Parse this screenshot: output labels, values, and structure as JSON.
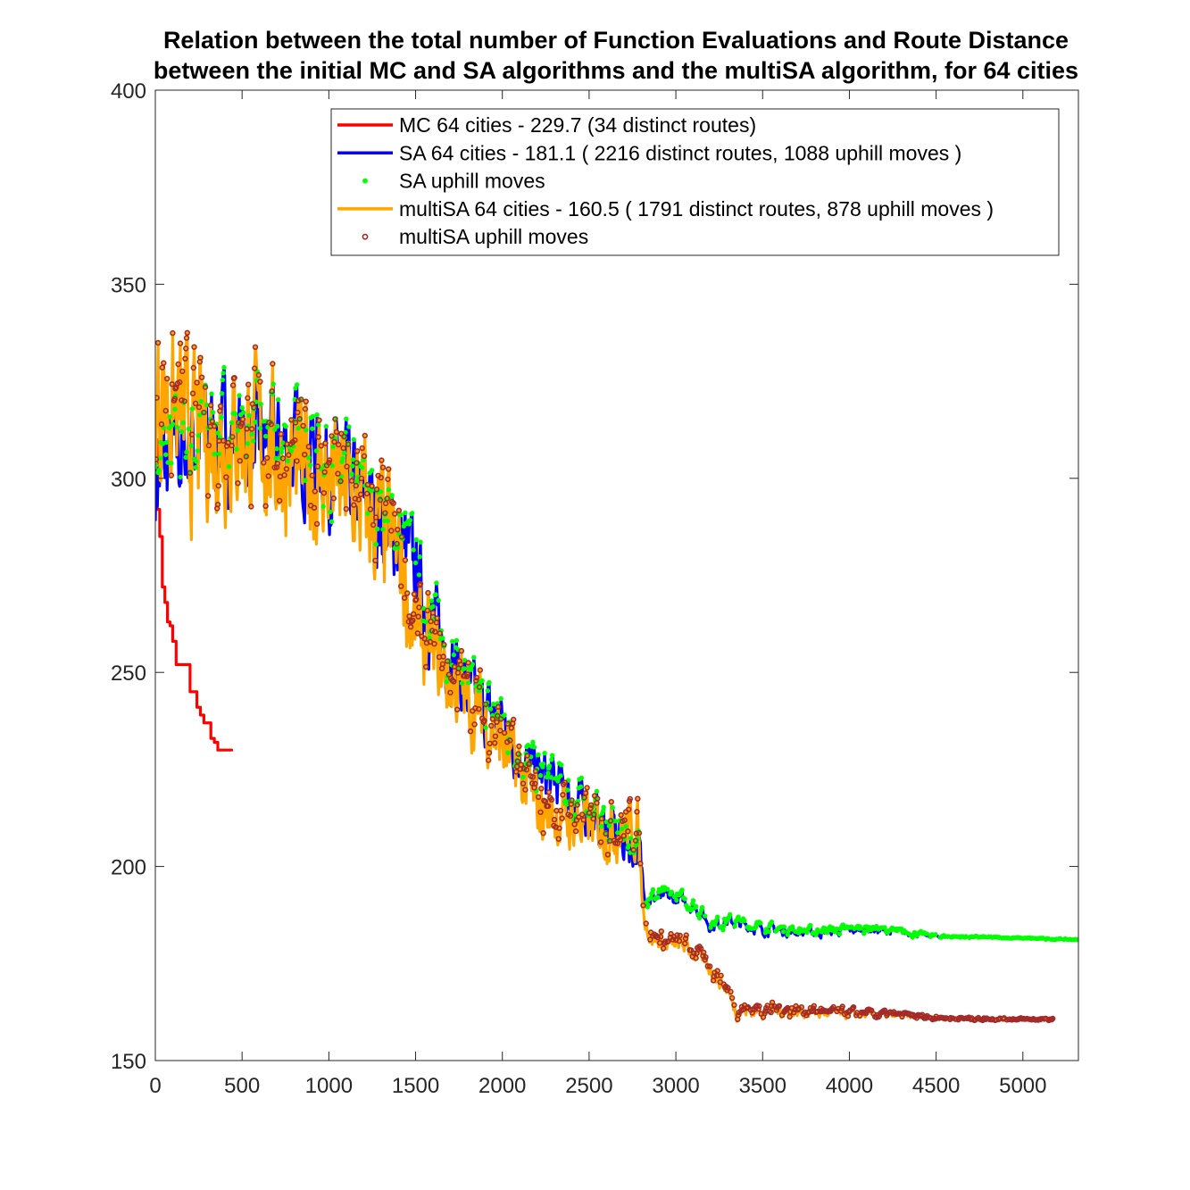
{
  "chart_data": {
    "type": "line",
    "title": [
      "Relation between the total number of Function Evaluations and Route Distance",
      "between the initial MC and SA algorithms and the multiSA algorithm, for 64 cities"
    ],
    "xlabel": "",
    "ylabel": "",
    "xlim": [
      0,
      5320
    ],
    "ylim": [
      150,
      400
    ],
    "xticks": [
      0,
      500,
      1000,
      1500,
      2000,
      2500,
      3000,
      3500,
      4000,
      4500,
      5000
    ],
    "yticks": [
      150,
      200,
      250,
      300,
      350,
      400
    ],
    "grid": false,
    "legend_position": "top-right",
    "colors": {
      "mc": "#ff0000",
      "sa": "#0000ff",
      "sa_uphill": "#00ff00",
      "multisa": "#ffa500",
      "multisa_uphill": "#a52a2a"
    },
    "legend": [
      "MC 64 cities - 229.7 (34 distinct routes)",
      "SA 64 cities - 181.1 ( 2216 distinct routes, 1088 uphill moves )",
      "SA uphill moves",
      "multiSA 64 cities - 160.5 ( 1791 distinct routes, 878 uphill moves )",
      "multiSA uphill moves"
    ],
    "series": [
      {
        "name": "MC 64 cities - 229.7 (34 distinct routes)",
        "style": "step",
        "x": [
          0,
          10,
          25,
          40,
          55,
          70,
          85,
          100,
          120,
          160,
          200,
          215,
          240,
          260,
          280,
          300,
          320,
          340,
          360,
          440
        ],
        "y": [
          310,
          292,
          285,
          272,
          268,
          263,
          262,
          258,
          252,
          252,
          245,
          245,
          241,
          239,
          237,
          237,
          233,
          232,
          230,
          229.7
        ]
      },
      {
        "name": "SA 64 cities - 181.1 ( 2216 distinct routes, 1088 uphill moves )",
        "style": "noisy",
        "trend_x": [
          0,
          100,
          300,
          500,
          700,
          900,
          1100,
          1300,
          1450,
          1500,
          1600,
          1700,
          1800,
          1900,
          2000,
          2100,
          2200,
          2300,
          2400,
          2500,
          2600,
          2700,
          2790,
          2800,
          2830,
          2900,
          3000,
          3100,
          3150,
          3200,
          3300,
          3500,
          3800,
          4100,
          4500,
          5000,
          5320
        ],
        "trend_y": [
          300,
          305,
          312,
          310,
          308,
          308,
          298,
          290,
          282,
          275,
          262,
          255,
          245,
          240,
          238,
          228,
          224,
          222,
          217,
          214,
          210,
          207,
          204,
          199,
          192,
          192,
          192,
          190,
          188,
          185,
          186,
          184,
          183,
          184,
          182,
          181.5,
          181.1
        ],
        "noise": [
          [
            0,
            10
          ],
          [
            1300,
            9
          ],
          [
            1500,
            8
          ],
          [
            2000,
            5
          ],
          [
            2800,
            4
          ],
          [
            2810,
            1.8
          ],
          [
            3300,
            1.2
          ],
          [
            4200,
            0.8
          ],
          [
            4600,
            0.2
          ],
          [
            5320,
            0.1
          ]
        ]
      },
      {
        "name": "multiSA 64 cities - 160.5 ( 1791 distinct routes, 878 uphill moves )",
        "style": "noisy",
        "trend_x": [
          0,
          50,
          200,
          400,
          600,
          800,
          1000,
          1200,
          1400,
          1500,
          1700,
          1900,
          2000,
          2200,
          2400,
          2600,
          2780,
          2810,
          2850,
          2950,
          3050,
          3200,
          3300,
          3350,
          3600,
          4000,
          4300,
          4600,
          5000,
          5180
        ],
        "trend_y": [
          320,
          322,
          310,
          312,
          310,
          302,
          300,
          292,
          280,
          260,
          248,
          238,
          232,
          215,
          212,
          210,
          210,
          190,
          182,
          180,
          180,
          174,
          168,
          163,
          163,
          162,
          161.5,
          160.8,
          160.6,
          160.5
        ],
        "noise": [
          [
            0,
            16
          ],
          [
            300,
            14
          ],
          [
            1400,
            12
          ],
          [
            1500,
            9
          ],
          [
            2000,
            7
          ],
          [
            2790,
            5
          ],
          [
            2810,
            2
          ],
          [
            3400,
            1.5
          ],
          [
            4200,
            0.8
          ],
          [
            4600,
            0.3
          ],
          [
            5180,
            0.2
          ]
        ]
      }
    ],
    "scatter": [
      {
        "name": "SA uphill moves",
        "on_series": 1,
        "count": 1088
      },
      {
        "name": "multiSA uphill moves",
        "on_series": 2,
        "count": 878
      }
    ]
  }
}
